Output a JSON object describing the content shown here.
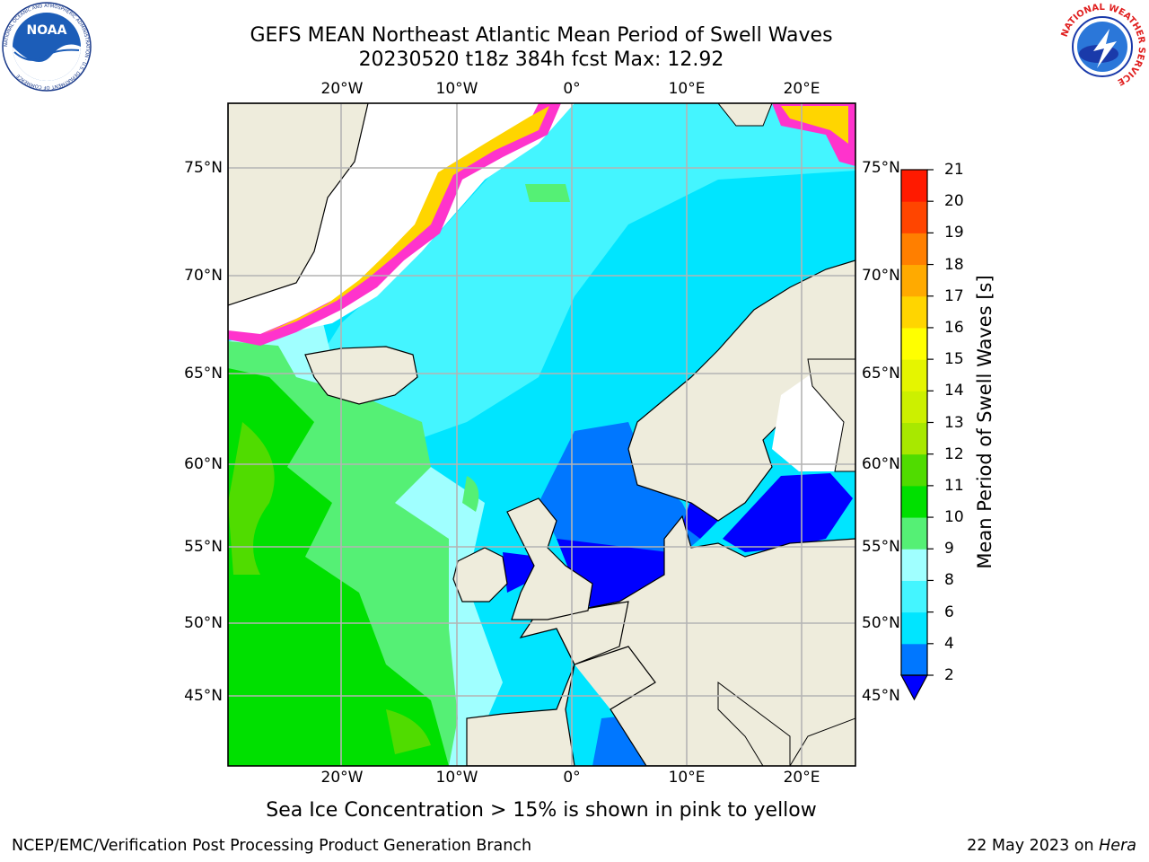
{
  "title": {
    "line1": "GEFS MEAN Northeast Atlantic Mean Period of Swell Waves",
    "line2": "20230520 t18z 384h fcst   Max: 12.92"
  },
  "logos": {
    "noaa": {
      "text": "NOAA",
      "ring_text": "NATIONAL OCEANIC AND ATMOSPHERIC ADMINISTRATION · U.S. DEPARTMENT OF COMMERCE"
    },
    "nws": {
      "ring_text": "NATIONAL WEATHER SERVICE"
    }
  },
  "map": {
    "lon_labels": [
      "20°W",
      "10°W",
      "0°",
      "10°E",
      "20°E"
    ],
    "lat_labels": [
      "75°N",
      "70°N",
      "65°N",
      "60°N",
      "55°N",
      "50°N",
      "45°N"
    ],
    "colors": {
      "land": "#eeecdc",
      "ice_free_white": "#ffffff",
      "grid": "#b4b4b4"
    }
  },
  "colorbar": {
    "label": "Mean Period of Swell Waves [s]",
    "ticks": [
      "2",
      "4",
      "6",
      "8",
      "9",
      "10",
      "11",
      "12",
      "13",
      "14",
      "15",
      "16",
      "17",
      "18",
      "19",
      "20",
      "21"
    ],
    "colors": [
      "#0000ff",
      "#0077ff",
      "#00e5ff",
      "#44f5ff",
      "#a0ffff",
      "#55f075",
      "#00e000",
      "#50dc00",
      "#a8e800",
      "#ccf000",
      "#e5f500",
      "#ffff00",
      "#ffd500",
      "#ffaa00",
      "#ff7f00",
      "#ff4500",
      "#ff1a00",
      "#ff0000"
    ]
  },
  "footer": {
    "note": "Sea Ice Concentration > 15% is shown in pink to yellow",
    "credit_left": "NCEP/EMC/Verification Post Processing Product Generation Branch",
    "credit_right_prefix": "22 May 2023 on ",
    "credit_right_host": "Hera"
  }
}
